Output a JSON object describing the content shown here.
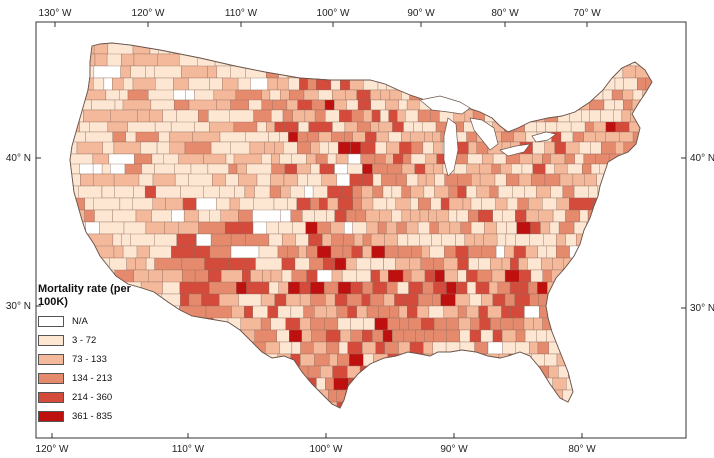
{
  "map": {
    "top_lon_labels": [
      "130° W",
      "120° W",
      "110° W",
      "100° W",
      "90° W",
      "80° W",
      "70° W"
    ],
    "bottom_lon_labels": [
      "120° W",
      "110° W",
      "100° W",
      "90° W",
      "80° W"
    ],
    "left_lat_labels": [
      "40° N",
      "30° N"
    ],
    "right_lat_labels": [
      "40° N",
      "30° N"
    ]
  },
  "legend": {
    "title": "Mortality rate (per 100K)",
    "classes": [
      {
        "label": "N/A",
        "color": "#ffffff"
      },
      {
        "label": "3 - 72",
        "color": "#fde6d2"
      },
      {
        "label": "73 - 133",
        "color": "#f4b89a"
      },
      {
        "label": "134 - 213",
        "color": "#e58a6d"
      },
      {
        "label": "214 - 360",
        "color": "#d44a3b"
      },
      {
        "label": "361 - 835",
        "color": "#bf1010"
      }
    ]
  },
  "colors": {
    "frame": "#333333",
    "land_base": "#f7c8ad",
    "county_outline": "#8c6a5d"
  }
}
